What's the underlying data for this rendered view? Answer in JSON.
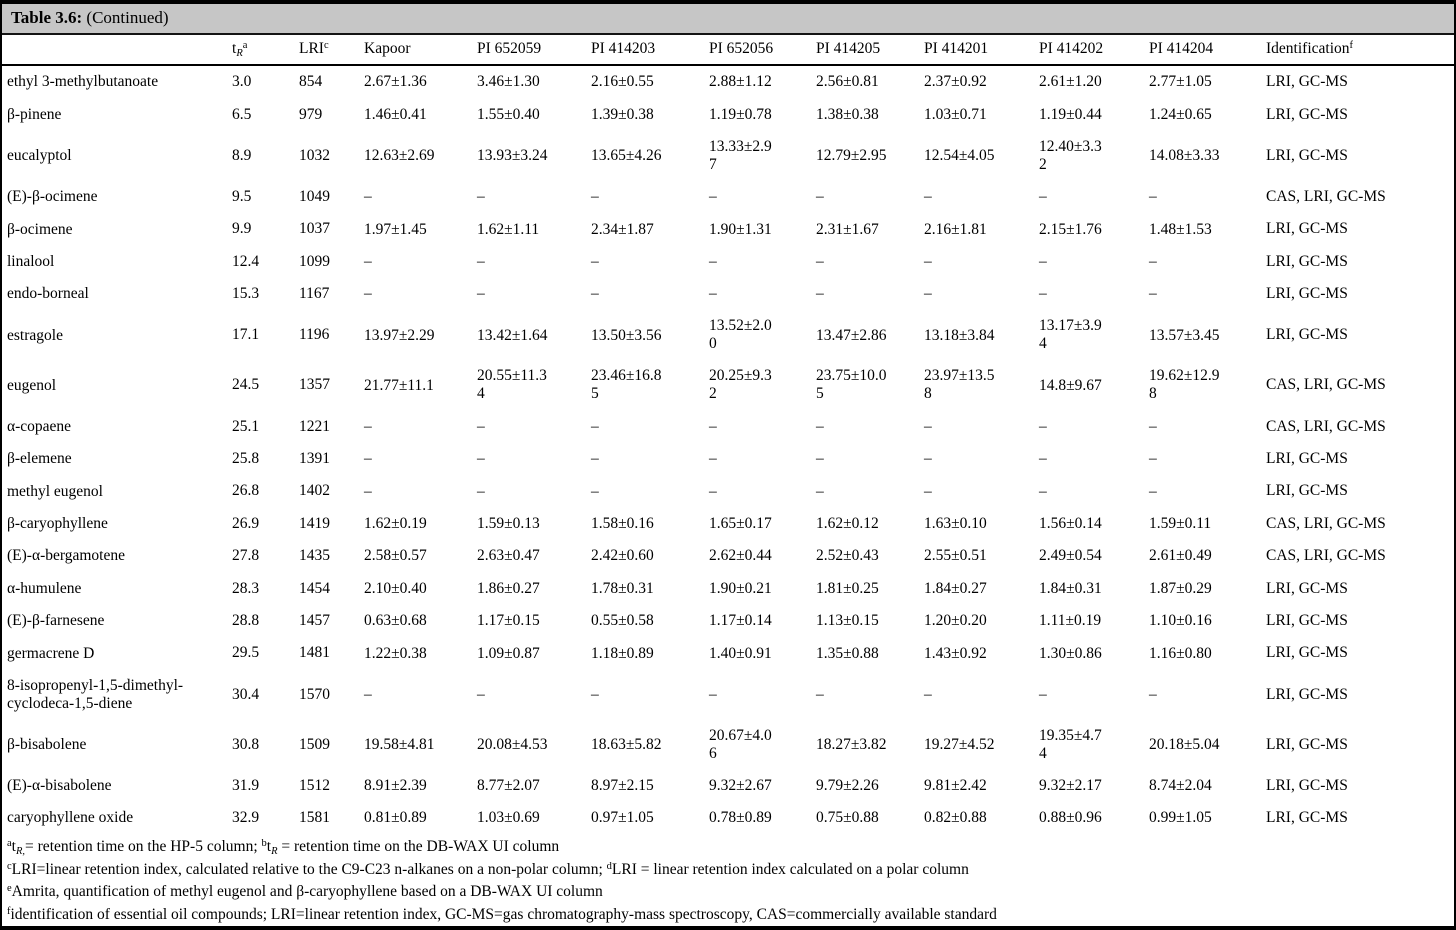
{
  "colors": {
    "caption_bg": "#c6c6c6",
    "border": "#000000",
    "text": "#000000",
    "page_bg": "#ffffff"
  },
  "table": {
    "caption_bold": "Table 3.6:",
    "caption_rest": " (Continued)",
    "columns": [
      {
        "key": "compound",
        "header": []
      },
      {
        "key": "tr",
        "header": [
          {
            "t": "t"
          },
          {
            "t": "R",
            "sub": true,
            "it": true
          },
          {
            "t": "a",
            "sup": true
          }
        ]
      },
      {
        "key": "lri",
        "header": [
          {
            "t": "LRI"
          },
          {
            "t": "c",
            "sup": true
          }
        ]
      },
      {
        "key": "kapoor",
        "header": [
          {
            "t": "Kapoor"
          }
        ]
      },
      {
        "key": "pi-652059",
        "header": [
          {
            "t": "PI 652059"
          }
        ]
      },
      {
        "key": "pi-414203",
        "header": [
          {
            "t": "PI 414203"
          }
        ]
      },
      {
        "key": "pi-652056",
        "header": [
          {
            "t": "PI 652056"
          }
        ]
      },
      {
        "key": "pi-414205",
        "header": [
          {
            "t": "PI 414205"
          }
        ]
      },
      {
        "key": "pi-414201",
        "header": [
          {
            "t": "PI 414201"
          }
        ]
      },
      {
        "key": "pi-414202",
        "header": [
          {
            "t": "PI 414202"
          }
        ]
      },
      {
        "key": "pi-414204",
        "header": [
          {
            "t": "PI 414204"
          }
        ]
      },
      {
        "key": "identification",
        "header": [
          {
            "t": "Identification"
          },
          {
            "t": "f",
            "sup": true
          }
        ]
      }
    ],
    "rows": [
      {
        "compound": "ethyl 3-methylbutanoate",
        "tr": "3.0",
        "lri": "854",
        "values": [
          "2.67±1.36",
          "3.46±1.30",
          "2.16±0.55",
          "2.88±1.12",
          "2.56±0.81",
          "2.37±0.92",
          "2.61±1.20",
          "2.77±1.05"
        ],
        "identification": "LRI, GC-MS"
      },
      {
        "compound": "β-pinene",
        "tr": "6.5",
        "lri": "979",
        "values": [
          "1.46±0.41",
          "1.55±0.40",
          "1.39±0.38",
          "1.19±0.78",
          "1.38±0.38",
          "1.03±0.71",
          "1.19±0.44",
          "1.24±0.65"
        ],
        "identification": "LRI, GC-MS"
      },
      {
        "compound": "eucalyptol",
        "tr": "8.9",
        "lri": "1032",
        "values": [
          "12.63±2.69",
          "13.93±3.24",
          "13.65±4.26",
          "13.33±2.97",
          "12.79±2.95",
          "12.54±4.05",
          "12.40±3.32",
          "14.08±3.33"
        ],
        "identification": "LRI, GC-MS"
      },
      {
        "compound": "(E)-β-ocimene",
        "tr": "9.5",
        "lri": "1049",
        "values": [
          "–",
          "–",
          "–",
          "–",
          "–",
          "–",
          "–",
          "–"
        ],
        "identification": "CAS, LRI, GC-MS"
      },
      {
        "compound": "β-ocimene",
        "tr": "9.9",
        "lri": "1037",
        "values": [
          "1.97±1.45",
          "1.62±1.11",
          "2.34±1.87",
          "1.90±1.31",
          "2.31±1.67",
          "2.16±1.81",
          "2.15±1.76",
          "1.48±1.53"
        ],
        "identification": "LRI, GC-MS"
      },
      {
        "compound": "linalool",
        "tr": "12.4",
        "lri": "1099",
        "values": [
          "–",
          "–",
          "–",
          "–",
          "–",
          "–",
          "–",
          "–"
        ],
        "identification": "LRI, GC-MS"
      },
      {
        "compound": "endo-borneal",
        "tr": "15.3",
        "lri": "1167",
        "values": [
          "–",
          "–",
          "–",
          "–",
          "–",
          "–",
          "–",
          "–"
        ],
        "identification": "LRI, GC-MS"
      },
      {
        "compound": "estragole",
        "tr": "17.1",
        "lri": "1196",
        "values": [
          "13.97±2.29",
          "13.42±1.64",
          "13.50±3.56",
          "13.52±2.00",
          "13.47±2.86",
          "13.18±3.84",
          "13.17±3.94",
          "13.57±3.45"
        ],
        "identification": "LRI, GC-MS"
      },
      {
        "compound": "eugenol",
        "tr": "24.5",
        "lri": "1357",
        "values": [
          "21.77±11.1",
          "20.55±11.34",
          "23.46±16.85",
          "20.25±9.32",
          "23.75±10.05",
          "23.97±13.58",
          "14.8±9.67",
          "19.62±12.98"
        ],
        "identification": "CAS, LRI, GC-MS"
      },
      {
        "compound": "α-copaene",
        "tr": "25.1",
        "lri": "1221",
        "values": [
          "–",
          "–",
          "–",
          "–",
          "–",
          "–",
          "–",
          "–"
        ],
        "identification": "CAS, LRI, GC-MS"
      },
      {
        "compound": "β-elemene",
        "tr": "25.8",
        "lri": "1391",
        "values": [
          "–",
          "–",
          "–",
          "–",
          "–",
          "–",
          "–",
          "–"
        ],
        "identification": "LRI, GC-MS"
      },
      {
        "compound": "methyl eugenol",
        "tr": "26.8",
        "lri": "1402",
        "values": [
          "–",
          "–",
          "–",
          "–",
          "–",
          "–",
          "–",
          "–"
        ],
        "identification": "LRI, GC-MS"
      },
      {
        "compound": "β-caryophyllene",
        "tr": "26.9",
        "lri": "1419",
        "values": [
          "1.62±0.19",
          "1.59±0.13",
          "1.58±0.16",
          "1.65±0.17",
          "1.62±0.12",
          "1.63±0.10",
          "1.56±0.14",
          "1.59±0.11"
        ],
        "identification": "CAS, LRI, GC-MS"
      },
      {
        "compound": "(E)-α-bergamotene",
        "tr": "27.8",
        "lri": "1435",
        "values": [
          "2.58±0.57",
          "2.63±0.47",
          "2.42±0.60",
          "2.62±0.44",
          "2.52±0.43",
          "2.55±0.51",
          "2.49±0.54",
          "2.61±0.49"
        ],
        "identification": "CAS, LRI, GC-MS"
      },
      {
        "compound": "α-humulene",
        "tr": "28.3",
        "lri": "1454",
        "values": [
          "2.10±0.40",
          "1.86±0.27",
          "1.78±0.31",
          "1.90±0.21",
          "1.81±0.25",
          "1.84±0.27",
          "1.84±0.31",
          "1.87±0.29"
        ],
        "identification": "LRI, GC-MS"
      },
      {
        "compound": "(E)-β-farnesene",
        "tr": "28.8",
        "lri": "1457",
        "values": [
          "0.63±0.68",
          "1.17±0.15",
          "0.55±0.58",
          "1.17±0.14",
          "1.13±0.15",
          "1.20±0.20",
          "1.11±0.19",
          "1.10±0.16"
        ],
        "identification": "LRI, GC-MS"
      },
      {
        "compound": "germacrene D",
        "tr": "29.5",
        "lri": "1481",
        "values": [
          "1.22±0.38",
          "1.09±0.87",
          "1.18±0.89",
          "1.40±0.91",
          "1.35±0.88",
          "1.43±0.92",
          "1.30±0.86",
          "1.16±0.80"
        ],
        "identification": "LRI, GC-MS"
      },
      {
        "compound": "8-isopropenyl-1,5-dimethyl-cyclodeca-1,5-diene",
        "tr": "30.4",
        "lri": "1570",
        "values": [
          "–",
          "–",
          "–",
          "–",
          "–",
          "–",
          "–",
          "–"
        ],
        "identification": "LRI, GC-MS"
      },
      {
        "compound": "β-bisabolene",
        "tr": "30.8",
        "lri": "1509",
        "values": [
          "19.58±4.81",
          "20.08±4.53",
          "18.63±5.82",
          "20.67±4.06",
          "18.27±3.82",
          "19.27±4.52",
          "19.35±4.74",
          "20.18±5.04"
        ],
        "identification": "LRI, GC-MS"
      },
      {
        "compound": "(E)-α-bisabolene",
        "tr": "31.9",
        "lri": "1512",
        "values": [
          "8.91±2.39",
          "8.77±2.07",
          "8.97±2.15",
          "9.32±2.67",
          "9.79±2.26",
          "9.81±2.42",
          "9.32±2.17",
          "8.74±2.04"
        ],
        "identification": "LRI, GC-MS"
      },
      {
        "compound": "caryophyllene oxide",
        "tr": "32.9",
        "lri": "1581",
        "values": [
          "0.81±0.89",
          "1.03±0.69",
          "0.97±1.05",
          "0.78±0.89",
          "0.75±0.88",
          "0.82±0.88",
          "0.88±0.96",
          "0.99±1.05"
        ],
        "identification": "LRI, GC-MS"
      }
    ],
    "footnotes": [
      [
        {
          "t": "a",
          "sup": true
        },
        {
          "t": "t"
        },
        {
          "t": "R,",
          "sub": true,
          "it": true
        },
        {
          "t": "= retention time on the HP-5 column;  "
        },
        {
          "t": "b",
          "sup": true
        },
        {
          "t": "t"
        },
        {
          "t": "R",
          "sub": true,
          "it": true
        },
        {
          "t": " = retention time on the DB-WAX UI column"
        }
      ],
      [
        {
          "t": "c",
          "sup": true
        },
        {
          "t": "LRI=linear retention index, calculated relative to the C9-C23 n-alkanes on a non-polar column; "
        },
        {
          "t": "d",
          "sup": true
        },
        {
          "t": "LRI = linear retention index calculated on a polar column"
        }
      ],
      [
        {
          "t": "e",
          "sup": true
        },
        {
          "t": "Amrita, quantification of methyl eugenol and  β-caryophyllene based on a DB-WAX UI column"
        }
      ],
      [
        {
          "t": "f",
          "sup": true
        },
        {
          "t": "identification of essential oil compounds; LRI=linear retention index, GC-MS=gas chromatography-mass spectroscopy, CAS=commercially available standard"
        }
      ]
    ]
  }
}
